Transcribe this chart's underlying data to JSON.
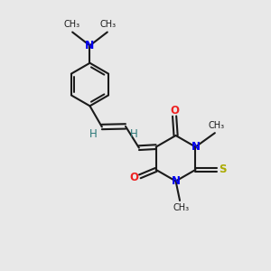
{
  "bg_color": "#e8e8e8",
  "bond_color": "#1a1a1a",
  "n_color": "#0000ee",
  "o_color": "#ee2020",
  "s_color": "#aaaa00",
  "h_color": "#2a7878",
  "lw": 1.5,
  "figsize": [
    3.0,
    3.0
  ],
  "dpi": 100,
  "xlim": [
    0,
    10
  ],
  "ylim": [
    0,
    10
  ]
}
